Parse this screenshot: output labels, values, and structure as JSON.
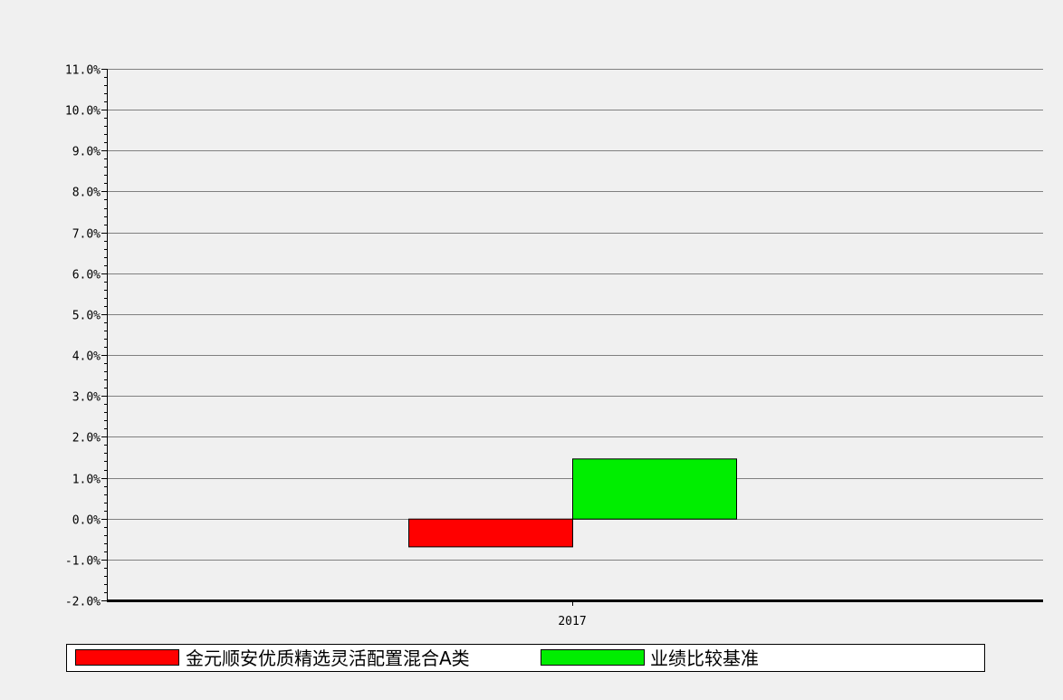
{
  "chart_data": {
    "type": "bar",
    "categories": [
      "2017"
    ],
    "series": [
      {
        "name": "金元顺安优质精选灵活配置混合A类",
        "values": [
          -0.68
        ],
        "color": "#ff0000"
      },
      {
        "name": "业绩比较基准",
        "values": [
          1.47
        ],
        "color": "#00ee00"
      }
    ],
    "ylim": [
      -2.0,
      11.0
    ],
    "yticks": [
      "11.0%",
      "10.0%",
      "9.0%",
      "8.0%",
      "7.0%",
      "6.0%",
      "5.0%",
      "4.0%",
      "3.0%",
      "2.0%",
      "1.0%",
      "0.0%",
      "-1.0%",
      "-2.0%"
    ],
    "ytick_values": [
      11,
      10,
      9,
      8,
      7,
      6,
      5,
      4,
      3,
      2,
      1,
      0,
      -1,
      -2
    ],
    "grid": true,
    "legend_position": "bottom",
    "title": "",
    "xlabel": "",
    "ylabel": ""
  }
}
